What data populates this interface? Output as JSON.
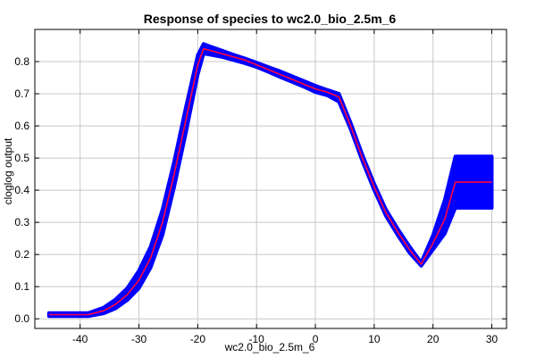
{
  "chart_data": {
    "type": "area",
    "title": "Response of species to wc2.0_bio_2.5m_6",
    "xlabel": "wc2.0_bio_2.5m_6",
    "ylabel": "cloglog output",
    "xlim": [
      -47.7,
      32.5
    ],
    "ylim": [
      -0.03,
      0.9
    ],
    "xticks": [
      -40,
      -30,
      -20,
      -10,
      0,
      10,
      20,
      30
    ],
    "yticks": [
      0.0,
      0.1,
      0.2,
      0.3,
      0.4,
      0.5,
      0.6,
      0.7,
      0.8
    ],
    "grid": true,
    "colors": {
      "band": "#0000ff",
      "line": "#ff0040",
      "grid": "#c8c8c8",
      "frame": "#000000"
    },
    "series": [
      {
        "name": "mean",
        "x": [
          -45.3,
          -38.6,
          -36,
          -34,
          -32,
          -30,
          -28,
          -26,
          -24,
          -22,
          -20,
          -19,
          -18,
          -16,
          -14,
          -12,
          -10,
          -8,
          -6,
          -4,
          -2,
          0,
          2,
          4,
          6,
          8,
          10,
          12,
          14,
          16,
          18,
          20,
          22,
          23.8,
          26,
          30
        ],
        "y": [
          0.013,
          0.013,
          0.025,
          0.045,
          0.075,
          0.12,
          0.19,
          0.3,
          0.45,
          0.62,
          0.79,
          0.84,
          0.835,
          0.825,
          0.815,
          0.805,
          0.79,
          0.775,
          0.76,
          0.745,
          0.73,
          0.715,
          0.705,
          0.69,
          0.6,
          0.5,
          0.41,
          0.33,
          0.27,
          0.215,
          0.17,
          0.235,
          0.31,
          0.425,
          0.425,
          0.425
        ]
      },
      {
        "name": "upper",
        "x": [
          -45.3,
          -38.6,
          -36,
          -34,
          -32,
          -30,
          -28,
          -26,
          -24,
          -22,
          -20,
          -19,
          -18,
          -16,
          -14,
          -12,
          -10,
          -8,
          -6,
          -4,
          -2,
          0,
          2,
          4,
          6,
          8,
          10,
          12,
          14,
          16,
          18,
          20,
          22,
          23.8,
          26,
          30
        ],
        "y": [
          0.018,
          0.018,
          0.035,
          0.06,
          0.095,
          0.15,
          0.225,
          0.34,
          0.49,
          0.66,
          0.82,
          0.855,
          0.848,
          0.835,
          0.822,
          0.81,
          0.797,
          0.783,
          0.77,
          0.755,
          0.74,
          0.725,
          0.712,
          0.7,
          0.61,
          0.51,
          0.42,
          0.34,
          0.28,
          0.225,
          0.175,
          0.26,
          0.37,
          0.505,
          0.505,
          0.505
        ]
      },
      {
        "name": "lower",
        "x": [
          -45.3,
          -38.6,
          -36,
          -34,
          -32,
          -30,
          -28,
          -26,
          -24,
          -22,
          -20,
          -19,
          -18,
          -16,
          -14,
          -12,
          -10,
          -8,
          -6,
          -4,
          -2,
          0,
          2,
          4,
          6,
          8,
          10,
          12,
          14,
          16,
          18,
          20,
          22,
          23.8,
          26,
          30
        ],
        "y": [
          0.008,
          0.008,
          0.017,
          0.032,
          0.058,
          0.095,
          0.16,
          0.26,
          0.41,
          0.58,
          0.76,
          0.825,
          0.822,
          0.815,
          0.805,
          0.795,
          0.783,
          0.768,
          0.752,
          0.737,
          0.722,
          0.705,
          0.695,
          0.675,
          0.59,
          0.49,
          0.4,
          0.32,
          0.26,
          0.205,
          0.165,
          0.215,
          0.265,
          0.345,
          0.345,
          0.345
        ]
      }
    ]
  }
}
